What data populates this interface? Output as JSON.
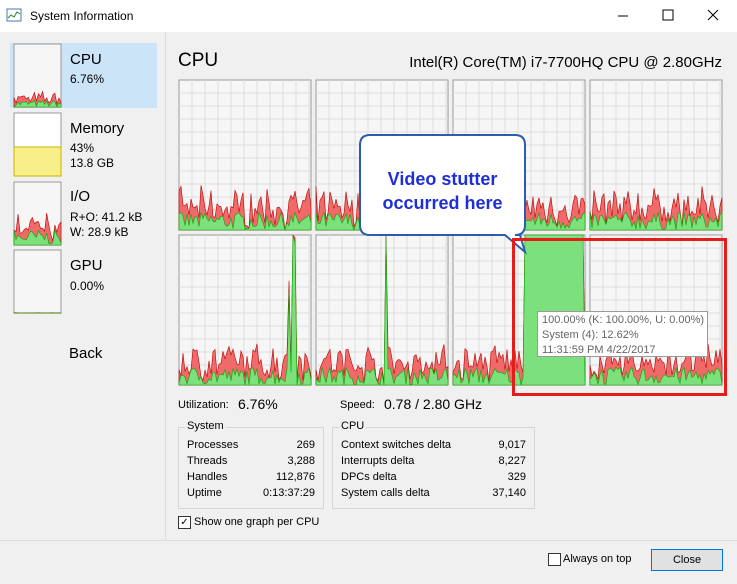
{
  "window": {
    "title": "System Information"
  },
  "sidebar": {
    "items": [
      {
        "label": "CPU",
        "lines": [
          "6.76%"
        ]
      },
      {
        "label": "Memory",
        "lines": [
          "43%",
          "13.8 GB"
        ]
      },
      {
        "label": "I/O",
        "lines": [
          "R+O: 41.2 kB",
          "W: 28.9 kB"
        ]
      },
      {
        "label": "GPU",
        "lines": [
          "0.00%"
        ]
      }
    ],
    "back": "Back"
  },
  "main": {
    "title": "CPU",
    "processor": "Intel(R) Core(TM) i7-7700HQ CPU @ 2.80GHz",
    "callout": [
      "Video stutter",
      "occurred here"
    ],
    "tooltip": [
      "100.00% (K: 100.00%, U: 0.00%)",
      "System (4): 12.62%",
      "11:31:59 PM 4/22/2017"
    ],
    "utilization": {
      "label": "Utilization:",
      "value": "6.76%"
    },
    "speed": {
      "label": "Speed:",
      "value": "0.78 / 2.80 GHz"
    },
    "system": {
      "title": "System",
      "rows": [
        [
          "Processes",
          "269"
        ],
        [
          "Threads",
          "3,288"
        ],
        [
          "Handles",
          "112,876"
        ],
        [
          "Uptime",
          "0:13:37:29"
        ]
      ]
    },
    "cpu": {
      "title": "CPU",
      "rows": [
        [
          "Context switches delta",
          "9,017"
        ],
        [
          "Interrupts delta",
          "8,227"
        ],
        [
          "DPCs delta",
          "329"
        ],
        [
          "System calls delta",
          "37,140"
        ]
      ]
    },
    "checkbox": "Show one graph per CPU"
  },
  "footer": {
    "always_on_top": "Always on top",
    "close": "Close"
  }
}
